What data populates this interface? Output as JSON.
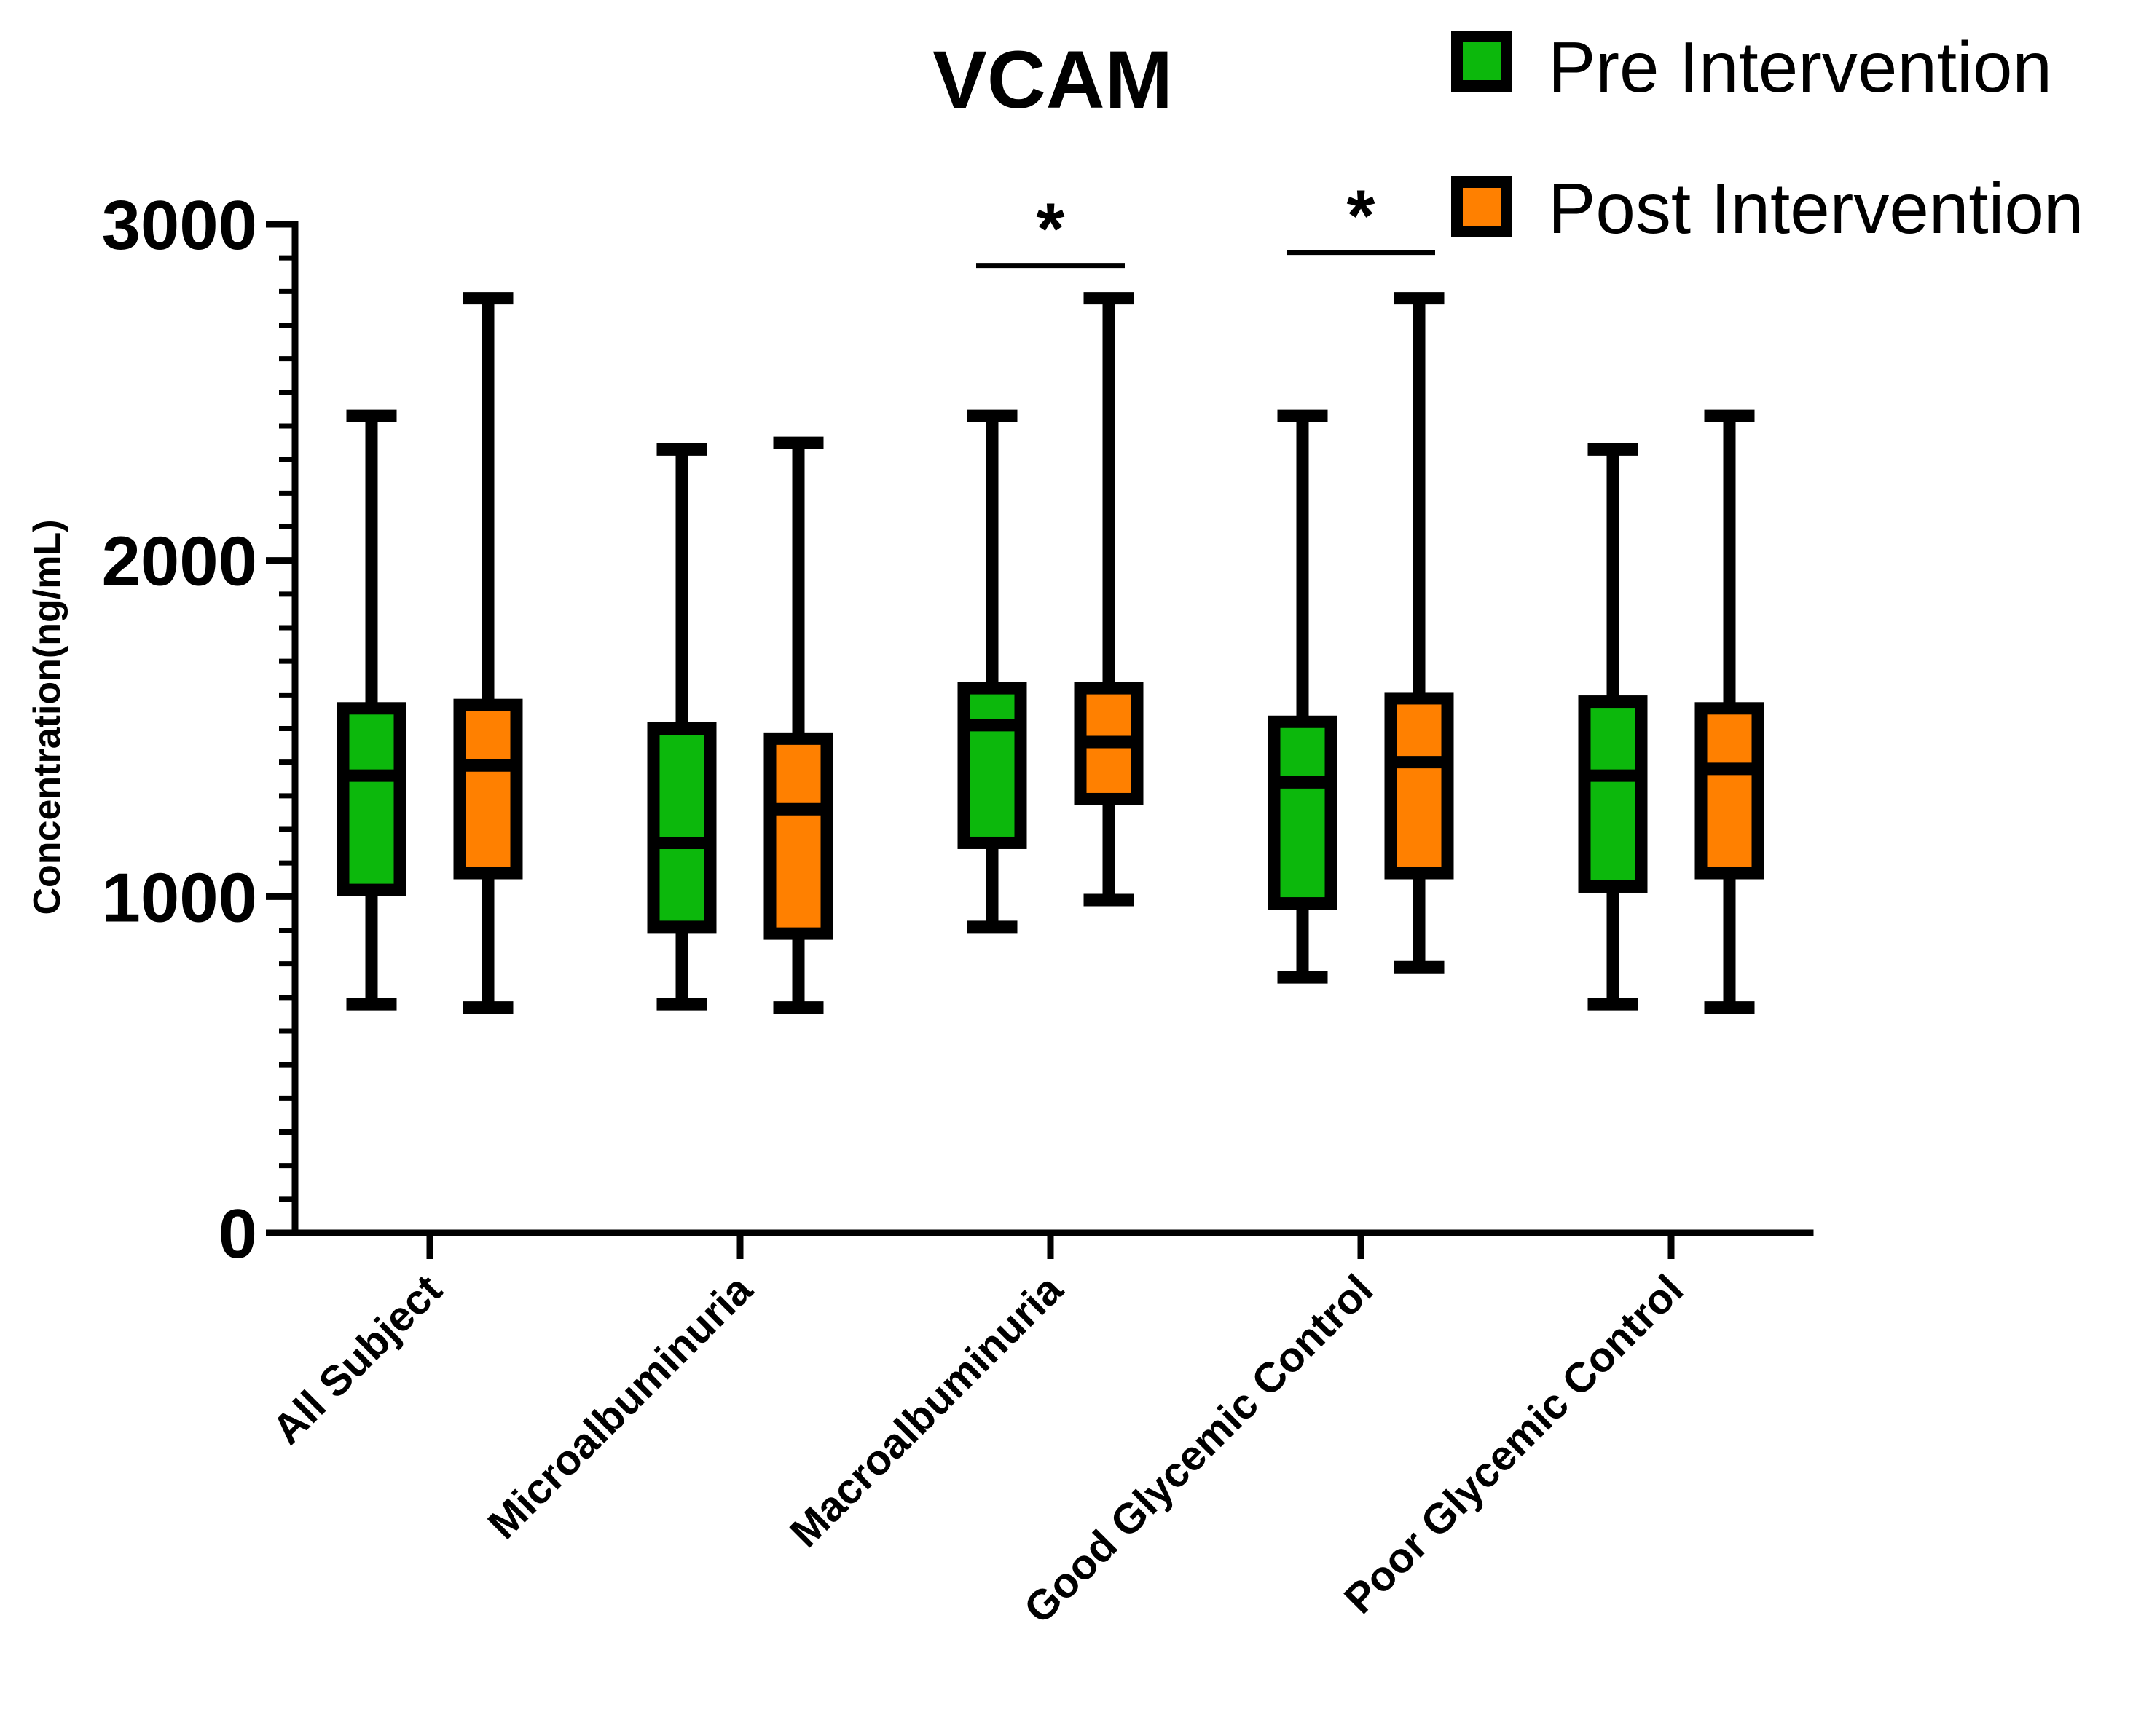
{
  "chart_data": {
    "type": "box",
    "title": "VCAM",
    "xlabel": "",
    "ylabel": "Concentration(ng/mL)",
    "ylim": [
      0,
      3000
    ],
    "y_ticks": [
      0,
      1000,
      2000,
      3000
    ],
    "y_minor_step": 100,
    "categories": [
      "All Subject",
      "Microalbuminuria",
      "Macroalbuminuria",
      "Good Glycemic Control",
      "Poor Glycemic Control"
    ],
    "series": [
      {
        "name": "Pre Intervention",
        "color": "#0cb80c",
        "boxes": [
          {
            "min": 680,
            "q1": 1020,
            "median": 1360,
            "q3": 1560,
            "max": 2430
          },
          {
            "min": 680,
            "q1": 910,
            "median": 1160,
            "q3": 1500,
            "max": 2330
          },
          {
            "min": 910,
            "q1": 1160,
            "median": 1510,
            "q3": 1620,
            "max": 2430
          },
          {
            "min": 760,
            "q1": 980,
            "median": 1340,
            "q3": 1520,
            "max": 2430
          },
          {
            "min": 680,
            "q1": 1030,
            "median": 1360,
            "q3": 1580,
            "max": 2330
          }
        ]
      },
      {
        "name": "Post Intervention",
        "color": "#ff8000",
        "boxes": [
          {
            "min": 670,
            "q1": 1070,
            "median": 1390,
            "q3": 1570,
            "max": 2780
          },
          {
            "min": 670,
            "q1": 890,
            "median": 1260,
            "q3": 1470,
            "max": 2350
          },
          {
            "min": 990,
            "q1": 1290,
            "median": 1460,
            "q3": 1620,
            "max": 2780
          },
          {
            "min": 790,
            "q1": 1070,
            "median": 1400,
            "q3": 1590,
            "max": 2780
          },
          {
            "min": 670,
            "q1": 1070,
            "median": 1380,
            "q3": 1560,
            "max": 2430
          }
        ]
      }
    ],
    "significance": [
      {
        "category": "Macroalbuminuria",
        "label": "*"
      },
      {
        "category": "Good Glycemic Control",
        "label": "*"
      }
    ],
    "legend": {
      "position": "top-right"
    }
  }
}
